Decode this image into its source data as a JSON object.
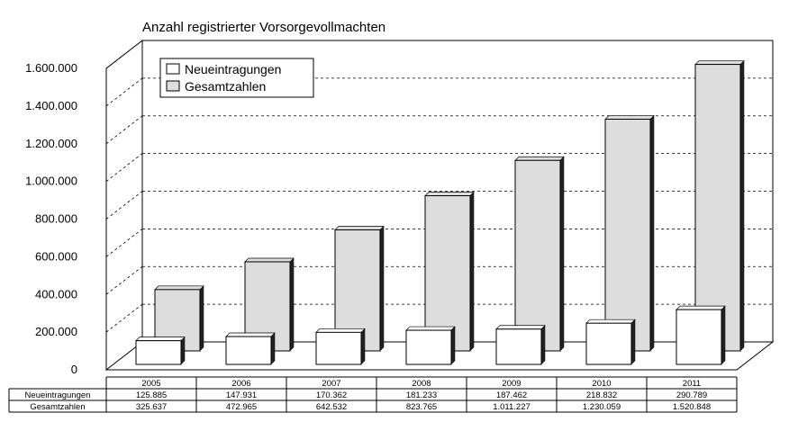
{
  "chart_data": {
    "type": "bar",
    "title": "Anzahl registrierter Vorsorgevollmachten",
    "categories": [
      "2005",
      "2006",
      "2007",
      "2008",
      "2009",
      "2010",
      "2011"
    ],
    "series": [
      {
        "name": "Neueintragungen",
        "values": [
          125885,
          147931,
          170362,
          181233,
          187462,
          218832,
          290789
        ],
        "labels": [
          "125.885",
          "147.931",
          "170.362",
          "181.233",
          "187.462",
          "218.832",
          "290.789"
        ],
        "color": "#ffffff"
      },
      {
        "name": "Gesamtzahlen",
        "values": [
          325637,
          472965,
          642532,
          823765,
          1011227,
          1230059,
          1520848
        ],
        "labels": [
          "325.637",
          "472.965",
          "642.532",
          "823.765",
          "1.011.227",
          "1.230.059",
          "1.520.848"
        ],
        "color": "#dddddd"
      }
    ],
    "ylim": [
      0,
      1600000
    ],
    "yticks": [
      0,
      200000,
      400000,
      600000,
      800000,
      1000000,
      1200000,
      1400000,
      1600000
    ],
    "ytick_labels": [
      "0",
      "200.000",
      "400.000",
      "600.000",
      "800.000",
      "1.000.000",
      "1.200.000",
      "1.400.000",
      "1.600.000"
    ],
    "grid": true,
    "legend": "top-left",
    "data_table": true
  }
}
